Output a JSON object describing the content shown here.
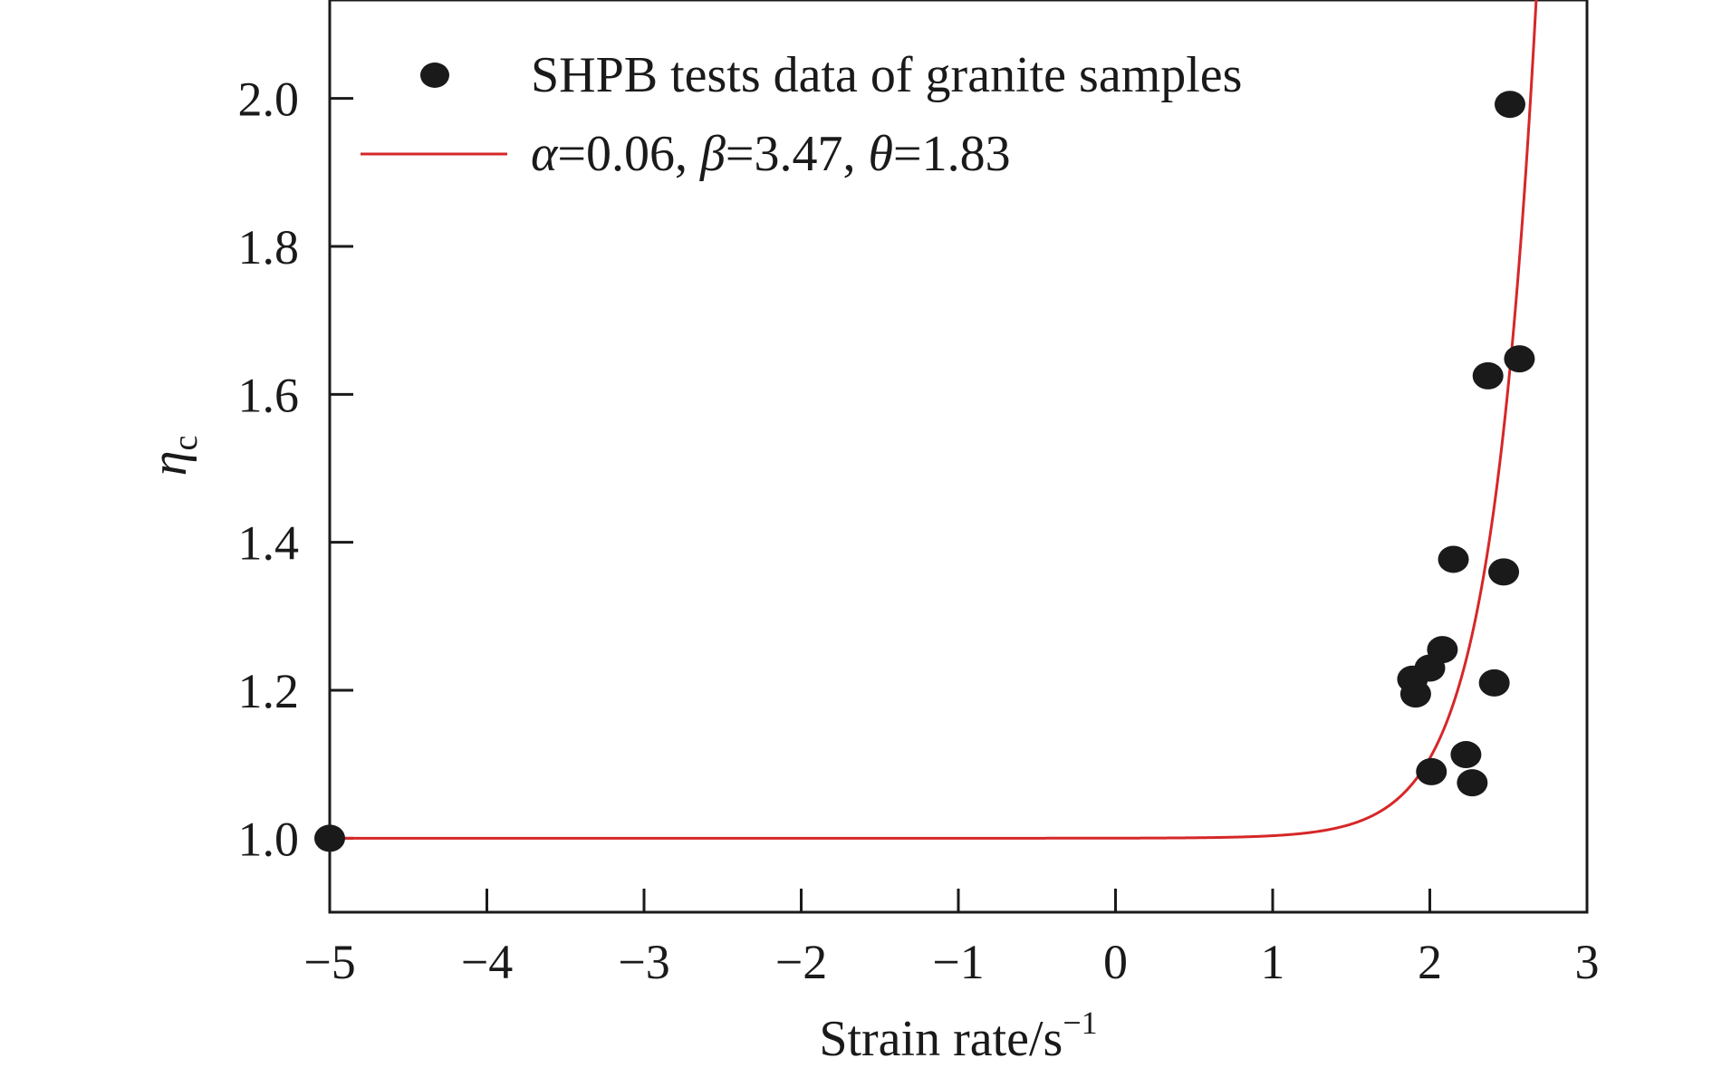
{
  "chart_data": {
    "type": "scatter",
    "xlabel": "Strain rate/s",
    "xlabel_superscript": "−1",
    "ylabel": "η",
    "ylabel_subscript": "c",
    "xlim": [
      -5,
      3
    ],
    "ylim": [
      0.9,
      2.1
    ],
    "xticks": [
      -5,
      -4,
      -3,
      -2,
      -1,
      0,
      1,
      2,
      3
    ],
    "xtick_labels": [
      "−5",
      "−4",
      "−3",
      "−2",
      "−1",
      "0",
      "1",
      "2",
      "3"
    ],
    "yticks": [
      1.0,
      1.2,
      1.4,
      1.6,
      1.8,
      2.0
    ],
    "ytick_labels": [
      "1.0",
      "1.2",
      "1.4",
      "1.6",
      "1.8",
      "2.0"
    ],
    "grid": false,
    "legend_position": "top-left",
    "series": [
      {
        "name": "SHPB tests data of granite samples",
        "kind": "scatter",
        "color": "#1a1a1a",
        "points": [
          [
            -5.0,
            1.0
          ],
          [
            1.89,
            1.215
          ],
          [
            1.91,
            1.195
          ],
          [
            2.0,
            1.23
          ],
          [
            2.08,
            1.255
          ],
          [
            2.01,
            1.09
          ],
          [
            2.15,
            1.377
          ],
          [
            2.23,
            1.113
          ],
          [
            2.27,
            1.075
          ],
          [
            2.37,
            1.625
          ],
          [
            2.41,
            1.21
          ],
          [
            2.47,
            1.36
          ],
          [
            2.51,
            1.992
          ],
          [
            2.57,
            1.648
          ]
        ]
      },
      {
        "name_parts": [
          {
            "text": "α",
            "italic": true
          },
          {
            "text": "=0.06, ",
            "italic": false
          },
          {
            "text": "β",
            "italic": true
          },
          {
            "text": "=3.47, ",
            "italic": false
          },
          {
            "text": "θ",
            "italic": true
          },
          {
            "text": "=1.83",
            "italic": false
          }
        ],
        "kind": "line",
        "color": "#d62728",
        "params": {
          "alpha": 0.06,
          "beta": 3.47,
          "theta": 1.83
        }
      }
    ]
  }
}
